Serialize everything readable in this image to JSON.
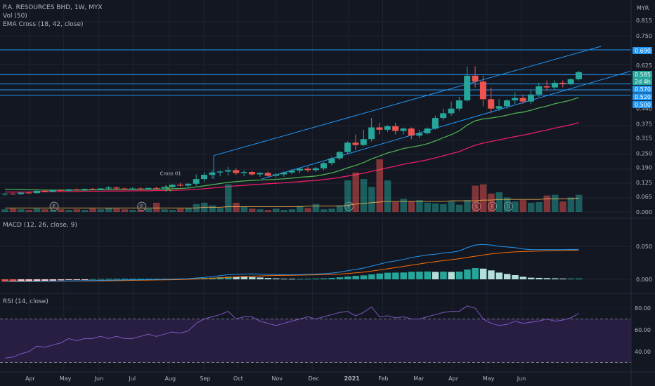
{
  "header": {
    "symbol_line": "P.A. RESOURCES BHD, 1W, MYX",
    "volume_label": "Vol (50)",
    "ema_label": "EMA Cross (18, 42, close)",
    "currency": "MYR"
  },
  "colors": {
    "background": "#131722",
    "grid": "#1f2430",
    "up": "#26a69a",
    "down": "#ef5350",
    "ema_fast": "#4caf50",
    "ema_slow": "#e91e63",
    "channel": "#2196f3",
    "macd_line": "#2196f3",
    "signal_line": "#ff6d00",
    "rsi_line": "#7e57c2",
    "rsi_band": "#2a1f45"
  },
  "chart_data": [
    {
      "type": "candlestick",
      "y_ticks": [
        "0.815",
        "0.750",
        "0.690",
        "0.625",
        "0.585",
        "0.520",
        "0.440",
        "0.375",
        "0.315",
        "0.250",
        "0.190",
        "0.125",
        "0.065",
        "0.000"
      ],
      "x_ticks": [
        "Apr",
        "May",
        "Jun",
        "Jul",
        "Aug",
        "Sep",
        "Oct",
        "Nov",
        "Dec",
        "2021",
        "Feb",
        "Mar",
        "Apr",
        "May",
        "Jun"
      ],
      "price_tags": [
        {
          "label": "0.690",
          "value": 0.69,
          "color": "#2196f3"
        },
        {
          "label": "0.585",
          "value": 0.585,
          "color": "#26a69a"
        },
        {
          "label": "2d 4h",
          "value": 0.569,
          "color": "#26a69a"
        },
        {
          "label": "0.570",
          "value": 0.545,
          "color": "#2196f3"
        },
        {
          "label": "0.520",
          "value": 0.52,
          "color": "#2196f3"
        },
        {
          "label": "0.500",
          "value": 0.497,
          "color": "#2196f3"
        }
      ],
      "horizontal_lines": [
        0.69,
        0.585,
        0.57,
        0.52,
        0.5
      ],
      "candles": [
        {
          "o": 0.075,
          "h": 0.08,
          "l": 0.07,
          "c": 0.078
        },
        {
          "o": 0.078,
          "h": 0.082,
          "l": 0.074,
          "c": 0.076
        },
        {
          "o": 0.076,
          "h": 0.084,
          "l": 0.073,
          "c": 0.082
        },
        {
          "o": 0.082,
          "h": 0.086,
          "l": 0.078,
          "c": 0.08
        },
        {
          "o": 0.08,
          "h": 0.092,
          "l": 0.078,
          "c": 0.09
        },
        {
          "o": 0.09,
          "h": 0.094,
          "l": 0.084,
          "c": 0.086
        },
        {
          "o": 0.086,
          "h": 0.095,
          "l": 0.084,
          "c": 0.093
        },
        {
          "o": 0.093,
          "h": 0.096,
          "l": 0.088,
          "c": 0.09
        },
        {
          "o": 0.09,
          "h": 0.098,
          "l": 0.088,
          "c": 0.096
        },
        {
          "o": 0.096,
          "h": 0.1,
          "l": 0.09,
          "c": 0.094
        },
        {
          "o": 0.094,
          "h": 0.1,
          "l": 0.09,
          "c": 0.098
        },
        {
          "o": 0.098,
          "h": 0.102,
          "l": 0.094,
          "c": 0.096
        },
        {
          "o": 0.096,
          "h": 0.102,
          "l": 0.092,
          "c": 0.1
        },
        {
          "o": 0.1,
          "h": 0.11,
          "l": 0.096,
          "c": 0.104
        },
        {
          "o": 0.104,
          "h": 0.108,
          "l": 0.096,
          "c": 0.1
        },
        {
          "o": 0.1,
          "h": 0.104,
          "l": 0.095,
          "c": 0.098
        },
        {
          "o": 0.098,
          "h": 0.104,
          "l": 0.094,
          "c": 0.1
        },
        {
          "o": 0.1,
          "h": 0.106,
          "l": 0.095,
          "c": 0.098
        },
        {
          "o": 0.098,
          "h": 0.104,
          "l": 0.094,
          "c": 0.102
        },
        {
          "o": 0.102,
          "h": 0.106,
          "l": 0.096,
          "c": 0.1
        },
        {
          "o": 0.1,
          "h": 0.108,
          "l": 0.096,
          "c": 0.106
        },
        {
          "o": 0.106,
          "h": 0.118,
          "l": 0.102,
          "c": 0.116
        },
        {
          "o": 0.116,
          "h": 0.124,
          "l": 0.108,
          "c": 0.112
        },
        {
          "o": 0.112,
          "h": 0.124,
          "l": 0.104,
          "c": 0.12
        },
        {
          "o": 0.12,
          "h": 0.16,
          "l": 0.11,
          "c": 0.14
        },
        {
          "o": 0.14,
          "h": 0.17,
          "l": 0.128,
          "c": 0.158
        },
        {
          "o": 0.158,
          "h": 0.178,
          "l": 0.142,
          "c": 0.168
        },
        {
          "o": 0.168,
          "h": 0.178,
          "l": 0.152,
          "c": 0.172
        },
        {
          "o": 0.172,
          "h": 0.192,
          "l": 0.154,
          "c": 0.178
        },
        {
          "o": 0.178,
          "h": 0.186,
          "l": 0.158,
          "c": 0.166
        },
        {
          "o": 0.166,
          "h": 0.178,
          "l": 0.152,
          "c": 0.17
        },
        {
          "o": 0.17,
          "h": 0.176,
          "l": 0.154,
          "c": 0.16
        },
        {
          "o": 0.16,
          "h": 0.17,
          "l": 0.15,
          "c": 0.166
        },
        {
          "o": 0.166,
          "h": 0.172,
          "l": 0.15,
          "c": 0.154
        },
        {
          "o": 0.154,
          "h": 0.166,
          "l": 0.146,
          "c": 0.16
        },
        {
          "o": 0.16,
          "h": 0.172,
          "l": 0.15,
          "c": 0.168
        },
        {
          "o": 0.168,
          "h": 0.182,
          "l": 0.16,
          "c": 0.176
        },
        {
          "o": 0.176,
          "h": 0.188,
          "l": 0.166,
          "c": 0.184
        },
        {
          "o": 0.184,
          "h": 0.192,
          "l": 0.17,
          "c": 0.178
        },
        {
          "o": 0.178,
          "h": 0.192,
          "l": 0.17,
          "c": 0.186
        },
        {
          "o": 0.186,
          "h": 0.212,
          "l": 0.178,
          "c": 0.208
        },
        {
          "o": 0.208,
          "h": 0.236,
          "l": 0.198,
          "c": 0.228
        },
        {
          "o": 0.228,
          "h": 0.26,
          "l": 0.22,
          "c": 0.255
        },
        {
          "o": 0.255,
          "h": 0.3,
          "l": 0.245,
          "c": 0.295
        },
        {
          "o": 0.295,
          "h": 0.33,
          "l": 0.262,
          "c": 0.285
        },
        {
          "o": 0.285,
          "h": 0.35,
          "l": 0.28,
          "c": 0.31
        },
        {
          "o": 0.31,
          "h": 0.4,
          "l": 0.3,
          "c": 0.36
        },
        {
          "o": 0.36,
          "h": 0.38,
          "l": 0.33,
          "c": 0.35
        },
        {
          "o": 0.35,
          "h": 0.37,
          "l": 0.34,
          "c": 0.365
        },
        {
          "o": 0.365,
          "h": 0.38,
          "l": 0.33,
          "c": 0.345
        },
        {
          "o": 0.345,
          "h": 0.36,
          "l": 0.33,
          "c": 0.355
        },
        {
          "o": 0.355,
          "h": 0.36,
          "l": 0.31,
          "c": 0.325
        },
        {
          "o": 0.325,
          "h": 0.35,
          "l": 0.315,
          "c": 0.335
        },
        {
          "o": 0.335,
          "h": 0.36,
          "l": 0.33,
          "c": 0.355
        },
        {
          "o": 0.355,
          "h": 0.41,
          "l": 0.35,
          "c": 0.4
        },
        {
          "o": 0.4,
          "h": 0.44,
          "l": 0.39,
          "c": 0.42
        },
        {
          "o": 0.42,
          "h": 0.47,
          "l": 0.41,
          "c": 0.44
        },
        {
          "o": 0.44,
          "h": 0.49,
          "l": 0.43,
          "c": 0.475
        },
        {
          "o": 0.475,
          "h": 0.62,
          "l": 0.47,
          "c": 0.58
        },
        {
          "o": 0.58,
          "h": 0.62,
          "l": 0.53,
          "c": 0.555
        },
        {
          "o": 0.555,
          "h": 0.58,
          "l": 0.45,
          "c": 0.48
        },
        {
          "o": 0.48,
          "h": 0.53,
          "l": 0.42,
          "c": 0.44
        },
        {
          "o": 0.44,
          "h": 0.48,
          "l": 0.43,
          "c": 0.45
        },
        {
          "o": 0.45,
          "h": 0.48,
          "l": 0.44,
          "c": 0.475
        },
        {
          "o": 0.475,
          "h": 0.51,
          "l": 0.46,
          "c": 0.485
        },
        {
          "o": 0.485,
          "h": 0.5,
          "l": 0.46,
          "c": 0.47
        },
        {
          "o": 0.47,
          "h": 0.52,
          "l": 0.46,
          "c": 0.5
        },
        {
          "o": 0.5,
          "h": 0.55,
          "l": 0.49,
          "c": 0.535
        },
        {
          "o": 0.535,
          "h": 0.56,
          "l": 0.515,
          "c": 0.53
        },
        {
          "o": 0.53,
          "h": 0.56,
          "l": 0.52,
          "c": 0.55
        },
        {
          "o": 0.55,
          "h": 0.56,
          "l": 0.53,
          "c": 0.545
        },
        {
          "o": 0.545,
          "h": 0.57,
          "l": 0.54,
          "c": 0.565
        },
        {
          "o": 0.565,
          "h": 0.6,
          "l": 0.56,
          "c": 0.595
        }
      ],
      "ema_fast": [
        0.097,
        0.096,
        0.095,
        0.094,
        0.094,
        0.093,
        0.093,
        0.093,
        0.093,
        0.093,
        0.093,
        0.094,
        0.094,
        0.095,
        0.095,
        0.096,
        0.096,
        0.096,
        0.096,
        0.097,
        0.097,
        0.099,
        0.1,
        0.102,
        0.106,
        0.111,
        0.116,
        0.121,
        0.126,
        0.129,
        0.132,
        0.134,
        0.136,
        0.137,
        0.139,
        0.141,
        0.144,
        0.148,
        0.15,
        0.153,
        0.159,
        0.166,
        0.176,
        0.188,
        0.198,
        0.21,
        0.226,
        0.238,
        0.251,
        0.26,
        0.27,
        0.276,
        0.282,
        0.29,
        0.302,
        0.316,
        0.329,
        0.345,
        0.37,
        0.388,
        0.396,
        0.4,
        0.405,
        0.412,
        0.42,
        0.425,
        0.433,
        0.443,
        0.451,
        0.461,
        0.468,
        0.476,
        0.488
      ],
      "ema_slow": [
        0.085,
        0.085,
        0.085,
        0.085,
        0.086,
        0.086,
        0.086,
        0.087,
        0.087,
        0.087,
        0.088,
        0.088,
        0.088,
        0.089,
        0.089,
        0.089,
        0.09,
        0.09,
        0.09,
        0.091,
        0.091,
        0.092,
        0.093,
        0.094,
        0.096,
        0.099,
        0.102,
        0.105,
        0.108,
        0.111,
        0.113,
        0.116,
        0.118,
        0.12,
        0.122,
        0.124,
        0.127,
        0.129,
        0.132,
        0.134,
        0.138,
        0.142,
        0.147,
        0.153,
        0.159,
        0.165,
        0.173,
        0.18,
        0.188,
        0.195,
        0.203,
        0.209,
        0.215,
        0.222,
        0.23,
        0.239,
        0.248,
        0.257,
        0.271,
        0.284,
        0.293,
        0.3,
        0.307,
        0.314,
        0.321,
        0.327,
        0.334,
        0.342,
        0.349,
        0.357,
        0.364,
        0.371,
        0.38
      ],
      "annotation": "Cross 01",
      "earnings_markers": [
        {
          "label": "E",
          "index": 6
        },
        {
          "label": "E",
          "index": 17
        },
        {
          "label": "E",
          "index": 43
        },
        {
          "label": "S",
          "index": 59
        },
        {
          "label": "E",
          "index": 61
        },
        {
          "label": "D",
          "index": 63
        }
      ],
      "volume": [
        4,
        5,
        4,
        3,
        5,
        4,
        3,
        4,
        3,
        4,
        3,
        5,
        4,
        6,
        5,
        4,
        3,
        3,
        5,
        14,
        4,
        3,
        5,
        6,
        12,
        14,
        10,
        6,
        42,
        14,
        8,
        5,
        4,
        3,
        5,
        3,
        4,
        9,
        6,
        12,
        4,
        5,
        10,
        48,
        60,
        50,
        38,
        80,
        48,
        15,
        20,
        16,
        18,
        14,
        13,
        12,
        16,
        11,
        18,
        40,
        42,
        28,
        30,
        22,
        16,
        18,
        14,
        15,
        25,
        26,
        16,
        22,
        26
      ],
      "volume_ma": [
        6,
        6,
        6,
        6,
        6,
        6,
        6,
        6,
        6,
        6,
        6,
        6,
        6,
        6,
        6,
        6,
        6,
        6,
        6,
        6,
        6,
        6,
        6,
        6,
        6,
        7,
        7,
        7,
        8,
        8,
        8,
        8,
        8,
        8,
        8,
        8,
        8,
        8,
        9,
        9,
        9,
        9,
        9,
        10,
        12,
        13,
        14,
        15,
        16,
        16,
        16,
        16,
        16,
        16,
        16,
        16,
        17,
        17,
        17,
        17,
        18,
        18,
        19,
        19,
        19,
        19,
        19,
        19,
        20,
        20,
        20,
        20,
        21
      ]
    },
    {
      "type": "macd",
      "label": "MACD (12, 26, close, 9)",
      "y_ticks": [
        "0.050",
        "0.000"
      ],
      "macd": [
        -0.003,
        -0.0032,
        -0.0034,
        -0.0035,
        -0.0033,
        -0.003,
        -0.0028,
        -0.0026,
        -0.0024,
        -0.0022,
        -0.002,
        -0.0018,
        -0.0016,
        -0.0014,
        -0.0012,
        -0.001,
        -0.0008,
        -0.0006,
        -0.0004,
        -0.0002,
        0.0,
        0.0003,
        0.0006,
        0.001,
        0.002,
        0.003,
        0.004,
        0.0055,
        0.007,
        0.0075,
        0.008,
        0.0082,
        0.008,
        0.0075,
        0.0072,
        0.007,
        0.007,
        0.0072,
        0.0075,
        0.008,
        0.0085,
        0.0095,
        0.011,
        0.013,
        0.015,
        0.017,
        0.02,
        0.023,
        0.026,
        0.028,
        0.03,
        0.033,
        0.035,
        0.037,
        0.038,
        0.04,
        0.041,
        0.043,
        0.048,
        0.052,
        0.053,
        0.052,
        0.05,
        0.049,
        0.048,
        0.046,
        0.045,
        0.045,
        0.045,
        0.045,
        0.045,
        0.0452,
        0.0455
      ],
      "signal": [
        -0.0025,
        -0.0026,
        -0.0027,
        -0.0028,
        -0.0029,
        -0.0029,
        -0.0029,
        -0.0028,
        -0.0027,
        -0.0026,
        -0.0025,
        -0.0024,
        -0.0023,
        -0.0022,
        -0.002,
        -0.0018,
        -0.0016,
        -0.0014,
        -0.0012,
        -0.001,
        -0.0008,
        -0.0006,
        -0.0003,
        0.0,
        0.0005,
        0.001,
        0.0016,
        0.0023,
        0.003,
        0.0037,
        0.0043,
        0.0048,
        0.0052,
        0.0055,
        0.0058,
        0.006,
        0.0062,
        0.0064,
        0.0066,
        0.0068,
        0.0071,
        0.0075,
        0.008,
        0.0088,
        0.0098,
        0.011,
        0.0125,
        0.0142,
        0.016,
        0.0178,
        0.0196,
        0.0215,
        0.0233,
        0.0251,
        0.0267,
        0.0283,
        0.0298,
        0.0313,
        0.0332,
        0.035,
        0.0368,
        0.0385,
        0.0398,
        0.0408,
        0.0416,
        0.0421,
        0.0425,
        0.0428,
        0.0432,
        0.0435,
        0.0438,
        0.044,
        0.0443
      ],
      "histogram": [
        -0.0035,
        -0.004,
        -0.0038,
        -0.0035,
        -0.003,
        -0.0025,
        -0.002,
        -0.0015,
        -0.001,
        -0.0008,
        -0.0006,
        0.0004,
        0.0006,
        0.0008,
        0.0008,
        0.0008,
        0.0008,
        0.0008,
        0.0008,
        0.0008,
        0.0008,
        0.0009,
        0.0009,
        0.001,
        0.0015,
        0.002,
        0.0024,
        0.0032,
        0.004,
        0.0038,
        0.0037,
        0.0034,
        0.0028,
        0.002,
        0.0014,
        0.001,
        0.0008,
        0.0008,
        0.0009,
        0.0012,
        0.0014,
        0.002,
        0.003,
        0.0042,
        0.0052,
        0.006,
        0.0075,
        0.0088,
        0.01,
        0.0102,
        0.0104,
        0.0115,
        0.0117,
        0.0119,
        0.0113,
        0.0117,
        0.0112,
        0.0117,
        0.0148,
        0.017,
        0.0162,
        0.0135,
        0.0102,
        0.0082,
        0.0064,
        0.0039,
        0.0025,
        0.0022,
        0.0018,
        0.0015,
        0.0012,
        0.0012,
        0.0012
      ]
    },
    {
      "type": "line",
      "label": "RSI (14, close)",
      "y_ticks": [
        "80.00",
        "60.00",
        "40.00"
      ],
      "upper_band": 70,
      "lower_band": 30,
      "values": [
        34,
        35,
        38,
        40,
        45,
        44,
        46,
        48,
        52,
        50,
        52,
        52,
        54,
        52,
        54,
        52,
        52,
        54,
        56,
        54,
        56,
        58,
        57,
        59,
        66,
        70,
        72,
        74,
        77,
        70,
        72,
        72,
        68,
        66,
        64,
        66,
        68,
        70,
        72,
        70,
        72,
        74,
        76,
        77,
        73,
        76,
        81,
        72,
        73,
        71,
        72,
        70,
        70,
        72,
        74,
        76,
        77,
        77,
        82,
        80,
        70,
        66,
        64,
        65,
        68,
        66,
        67,
        68,
        70,
        68,
        69,
        71,
        75
      ]
    }
  ]
}
